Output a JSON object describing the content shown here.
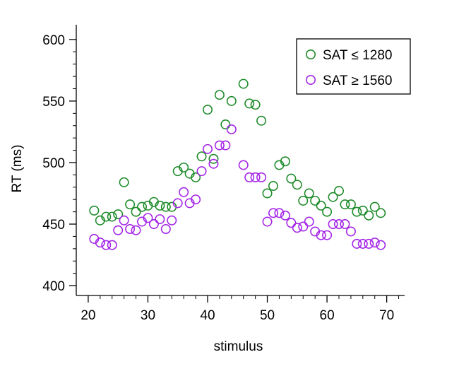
{
  "chart_data": {
    "type": "scatter",
    "xlabel": "stimulus",
    "ylabel": "RT (ms)",
    "xlim": [
      18,
      73
    ],
    "ylim": [
      392,
      612
    ],
    "xticks": [
      20,
      30,
      40,
      50,
      60,
      70
    ],
    "yticks": [
      400,
      450,
      500,
      550,
      600
    ],
    "grid": false,
    "legend_position": "top-right",
    "series": [
      {
        "name": "SAT ≤ 1280",
        "color": "#1f8c2b",
        "marker": "open-circle",
        "points": [
          [
            21,
            461
          ],
          [
            22,
            453
          ],
          [
            23,
            456
          ],
          [
            24,
            456
          ],
          [
            25,
            458
          ],
          [
            26,
            484
          ],
          [
            27,
            466
          ],
          [
            28,
            460
          ],
          [
            29,
            464
          ],
          [
            30,
            465
          ],
          [
            31,
            468
          ],
          [
            32,
            465
          ],
          [
            33,
            464
          ],
          [
            34,
            464
          ],
          [
            35,
            493
          ],
          [
            36,
            496
          ],
          [
            37,
            491
          ],
          [
            38,
            488
          ],
          [
            39,
            505
          ],
          [
            40,
            543
          ],
          [
            41,
            503
          ],
          [
            42,
            555
          ],
          [
            43,
            531
          ],
          [
            44,
            550
          ],
          [
            46,
            564
          ],
          [
            47,
            548
          ],
          [
            48,
            547
          ],
          [
            49,
            534
          ],
          [
            50,
            475
          ],
          [
            51,
            481
          ],
          [
            52,
            498
          ],
          [
            53,
            501
          ],
          [
            54,
            487
          ],
          [
            55,
            482
          ],
          [
            56,
            469
          ],
          [
            57,
            475
          ],
          [
            58,
            469
          ],
          [
            59,
            465
          ],
          [
            60,
            460
          ],
          [
            61,
            472
          ],
          [
            62,
            477
          ],
          [
            63,
            466
          ],
          [
            64,
            466
          ],
          [
            65,
            460
          ],
          [
            66,
            461
          ],
          [
            67,
            457
          ],
          [
            68,
            464
          ],
          [
            69,
            459
          ]
        ]
      },
      {
        "name": "SAT ≥ 1560",
        "color": "#a426e6",
        "marker": "open-circle",
        "points": [
          [
            21,
            438
          ],
          [
            22,
            435
          ],
          [
            23,
            433
          ],
          [
            24,
            433
          ],
          [
            25,
            445
          ],
          [
            26,
            453
          ],
          [
            27,
            446
          ],
          [
            28,
            445
          ],
          [
            29,
            452
          ],
          [
            30,
            455
          ],
          [
            31,
            450
          ],
          [
            32,
            454
          ],
          [
            33,
            446
          ],
          [
            34,
            453
          ],
          [
            35,
            467
          ],
          [
            36,
            476
          ],
          [
            37,
            467
          ],
          [
            38,
            470
          ],
          [
            39,
            493
          ],
          [
            40,
            511
          ],
          [
            41,
            499
          ],
          [
            42,
            514
          ],
          [
            43,
            514
          ],
          [
            44,
            527
          ],
          [
            46,
            498
          ],
          [
            47,
            488
          ],
          [
            48,
            488
          ],
          [
            49,
            488
          ],
          [
            50,
            452
          ],
          [
            51,
            459
          ],
          [
            52,
            459
          ],
          [
            53,
            457
          ],
          [
            54,
            451
          ],
          [
            55,
            447
          ],
          [
            56,
            448
          ],
          [
            57,
            452
          ],
          [
            58,
            444
          ],
          [
            59,
            441
          ],
          [
            60,
            441
          ],
          [
            61,
            450
          ],
          [
            62,
            450
          ],
          [
            63,
            450
          ],
          [
            64,
            444
          ],
          [
            65,
            434
          ],
          [
            66,
            434
          ],
          [
            67,
            434
          ],
          [
            68,
            435
          ],
          [
            69,
            433
          ]
        ]
      }
    ]
  }
}
